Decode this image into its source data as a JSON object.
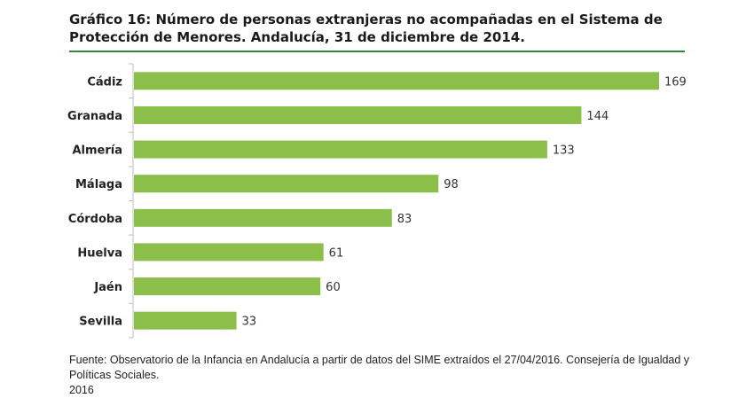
{
  "title_lines": [
    "Gráfico 16: Número de personas extranjeras no acompañadas en el Sistema de",
    "Protección de Menores. Andalucía, 31 de diciembre de 2014."
  ],
  "source_lines": [
    "Fuente: Observatorio de la Infancia en Andalucía a partir de datos del SIME extraídos el 27/04/2016. Consejería de Igualdad y Políticas Sociales.",
    "2016"
  ],
  "colors": {
    "bar": "#8bbf4a",
    "rule": "#2e8b3a",
    "axis": "#bfbfbf"
  },
  "chart_data": {
    "type": "bar",
    "orientation": "horizontal",
    "categories": [
      "Cádiz",
      "Granada",
      "Almería",
      "Málaga",
      "Córdoba",
      "Huelva",
      "Jaén",
      "Sevilla"
    ],
    "values": [
      169,
      144,
      133,
      98,
      83,
      61,
      60,
      33
    ],
    "title": "Gráfico 16: Número de personas extranjeras no acompañadas en el Sistema de Protección de Menores. Andalucía, 31 de diciembre de 2014.",
    "xlabel": "",
    "ylabel": "",
    "xlim": [
      0,
      169
    ],
    "grid": false,
    "legend": "none"
  }
}
